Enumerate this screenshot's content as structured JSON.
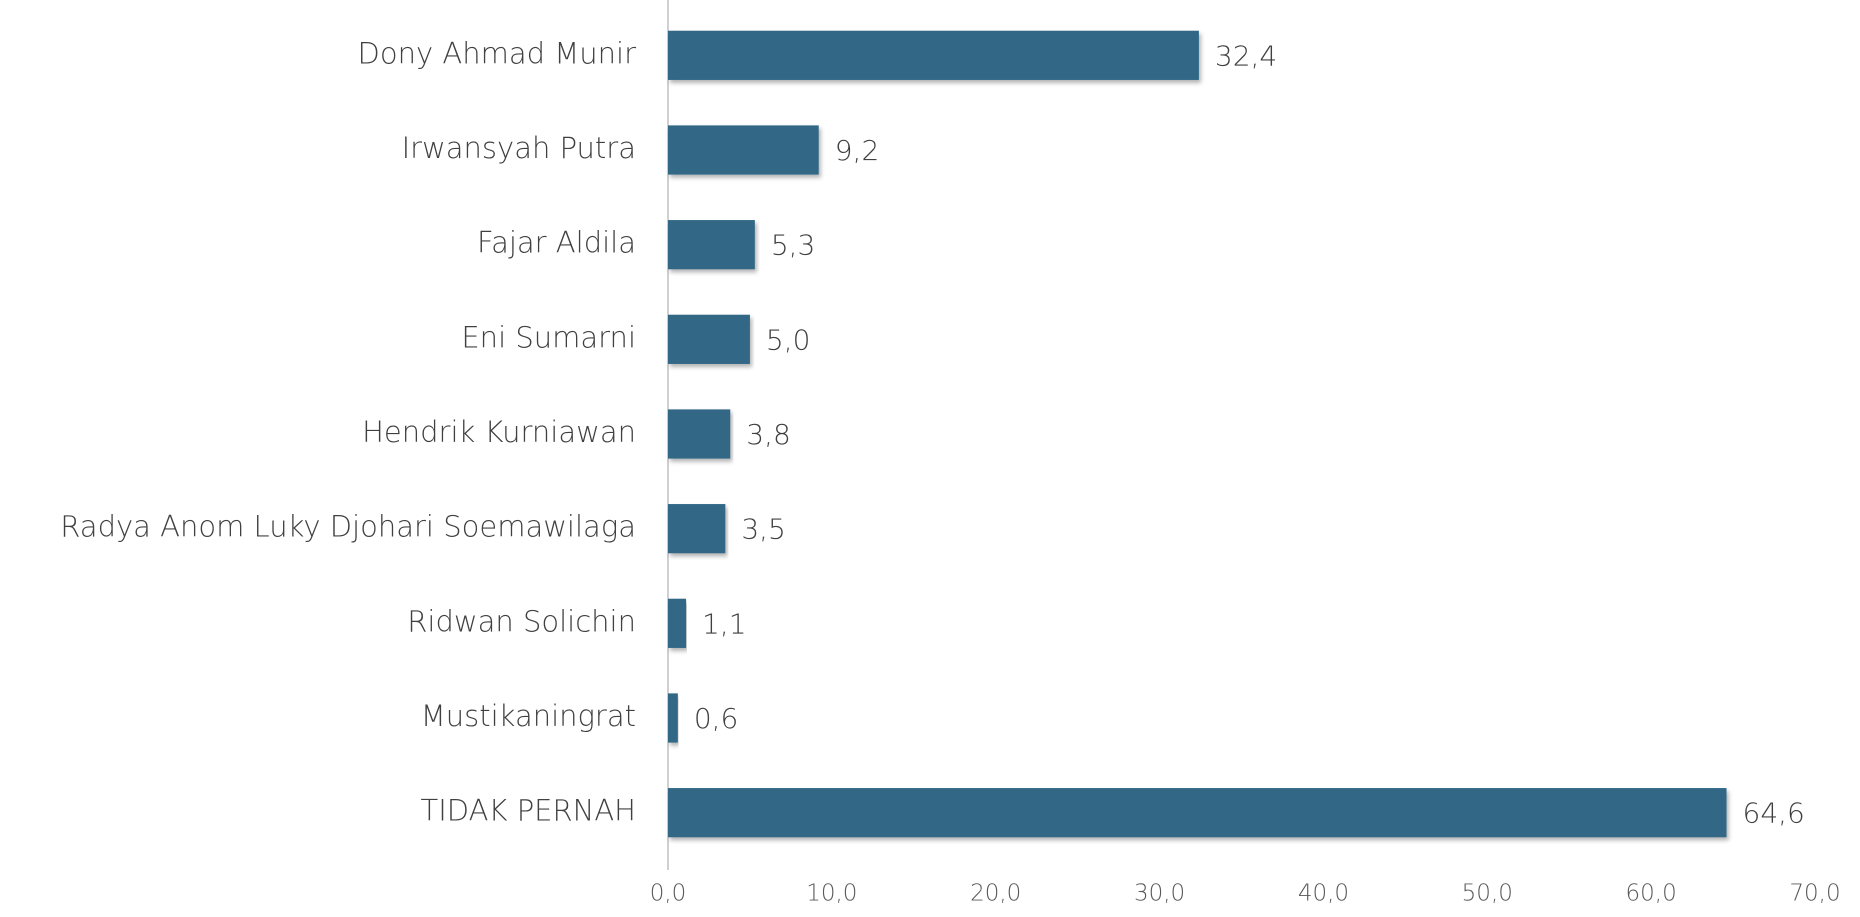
{
  "chart_data": {
    "type": "hbar",
    "categories": [
      "Dony Ahmad Munir",
      "Irwansyah Putra",
      "Fajar Aldila",
      "Eni Sumarni",
      "Hendrik Kurniawan",
      "Radya Anom Luky Djohari Soemawilaga",
      "Ridwan Solichin",
      "Mustikaningrat",
      "TIDAK PERNAH"
    ],
    "values": [
      32.4,
      9.2,
      5.3,
      5.0,
      3.8,
      3.5,
      1.1,
      0.6,
      64.6
    ],
    "value_labels": [
      "32,4",
      "9,2",
      "5,3",
      "5,0",
      "3,8",
      "3,5",
      "1,1",
      "0,6",
      "64,6"
    ],
    "color": "#326886",
    "xlim": [
      0,
      70
    ],
    "xticks": [
      {
        "value": 0,
        "label": "0,0"
      },
      {
        "value": 10,
        "label": "10,0"
      },
      {
        "value": 20,
        "label": "20,0"
      },
      {
        "value": 30,
        "label": "30,0"
      },
      {
        "value": 40,
        "label": "40,0"
      },
      {
        "value": 50,
        "label": "50,0"
      },
      {
        "value": 60,
        "label": "60,0"
      },
      {
        "value": 70,
        "label": "70,0"
      }
    ],
    "grid": false
  }
}
